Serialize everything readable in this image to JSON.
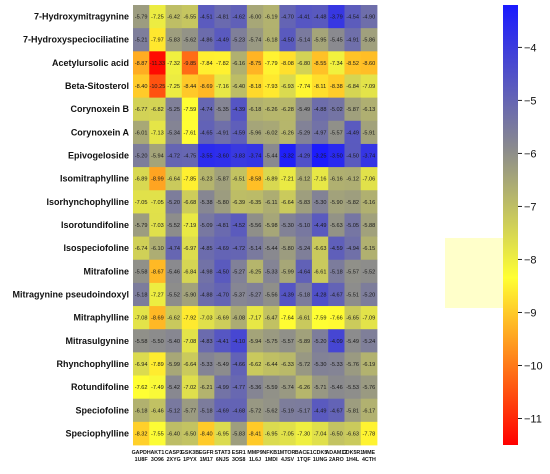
{
  "chart_data": {
    "type": "heatmap",
    "rows": [
      "7-Hydroxymitragynine",
      "7-Hydroxyspeciociliatine",
      "Acetylursolic acid",
      "Beta-Sitosterol",
      "Corynoxein B",
      "Corynoxein A",
      "Epivogeloside",
      "Isomitraphylline",
      "Isorhynchophylline",
      "Isorotundifoline",
      "Isospeciofoline",
      "Mitrafoline",
      "Mitragynine pseudoindoxyl",
      "Mitraphylline",
      "Mitrasulgynine",
      "Rhynchophylline",
      "Rotundifoline",
      "Speciofoline",
      "Speciophylline"
    ],
    "columns": [
      [
        "GAPDH",
        "1U8F"
      ],
      [
        "AKT1",
        "3O96"
      ],
      [
        "CASP3",
        "2XYG"
      ],
      [
        "GSK3B",
        "1PYX"
      ],
      [
        "EGFR",
        "1M17"
      ],
      [
        "STAT3",
        "6NJS"
      ],
      [
        "ESR1",
        "3OS8"
      ],
      [
        "MMP9",
        "1L6J"
      ],
      [
        "NFKB1",
        "1MDI"
      ],
      [
        "MTOR",
        "4JSV"
      ],
      [
        "BACE1",
        "1TQF"
      ],
      [
        "CDK5",
        "1UNG"
      ],
      [
        "ADAM17",
        "2ARO"
      ],
      [
        "CDK5R1",
        "1H4L"
      ],
      [
        "MME",
        "4CTH"
      ]
    ],
    "values": [
      [
        -5.79,
        -7.25,
        -6.42,
        -6.55,
        -4.51,
        -4.81,
        -4.62,
        -6.0,
        -6.19,
        -4.7,
        -4.41,
        -4.48,
        -3.79,
        -4.54,
        -4.9
      ],
      [
        -5.21,
        -7.97,
        -5.83,
        -5.62,
        -4.86,
        -4.49,
        -5.23,
        -5.74,
        -6.18,
        -4.5,
        -5.14,
        -5.95,
        -5.45,
        -4.91,
        -5.86
      ],
      [
        -8.87,
        -11.33,
        -7.32,
        -9.85,
        -7.84,
        -7.82,
        -6.16,
        -8.75,
        -7.79,
        -8.08,
        -6.8,
        -8.55,
        -7.34,
        -8.52,
        -8.6
      ],
      [
        -8.4,
        -10.25,
        -7.25,
        -8.44,
        -8.69,
        -7.16,
        -6.4,
        -8.18,
        -7.93,
        -6.93,
        -7.74,
        -8.11,
        -8.38,
        -6.84,
        -7.09
      ],
      [
        -6.77,
        -6.82,
        -5.25,
        -7.59,
        -4.74,
        -5.35,
        -4.39,
        -6.18,
        -6.26,
        -6.28,
        -5.49,
        -4.88,
        -5.02,
        -5.87,
        -6.13
      ],
      [
        -6.01,
        -7.13,
        -5.34,
        -7.61,
        -4.65,
        -4.91,
        -4.59,
        -5.96,
        -6.02,
        -6.26,
        -5.29,
        -4.97,
        -5.57,
        -4.49,
        -5.91
      ],
      [
        -5.2,
        -5.94,
        -4.72,
        -4.75,
        -3.55,
        -3.6,
        -3.83,
        -3.74,
        -5.44,
        -3.32,
        -4.29,
        -3.25,
        -3.5,
        -4.5,
        -3.74
      ],
      [
        -6.89,
        -8.99,
        -6.64,
        -7.85,
        -6.23,
        -5.87,
        -6.51,
        -8.58,
        -6.89,
        -7.21,
        -6.12,
        -7.16,
        -6.16,
        -6.12,
        -7.06
      ],
      [
        -7.05,
        -7.05,
        -5.2,
        -6.68,
        -5.38,
        -5.8,
        -6.39,
        -6.35,
        -6.11,
        -6.64,
        -5.83,
        -5.3,
        -5.9,
        -5.82,
        -6.16
      ],
      [
        -5.79,
        -7.03,
        -5.52,
        -7.19,
        -5.09,
        -4.81,
        -4.52,
        -5.56,
        -5.98,
        -5.3,
        -5.1,
        -4.49,
        -5.63,
        -5.05,
        -5.88
      ],
      [
        -6.74,
        -6.1,
        -4.74,
        -6.97,
        -4.85,
        -4.69,
        -4.72,
        -5.14,
        -5.44,
        -5.8,
        -5.24,
        -6.63,
        -4.59,
        -4.94,
        -6.15
      ],
      [
        -5.58,
        -8.67,
        -5.46,
        -6.84,
        -4.98,
        -4.5,
        -5.27,
        -6.25,
        -5.33,
        -5.99,
        -4.64,
        -6.61,
        -5.18,
        -5.57,
        -5.52
      ],
      [
        -5.18,
        -7.27,
        -5.52,
        -5.9,
        -4.88,
        -4.7,
        -5.37,
        -5.27,
        -5.56,
        -4.39,
        -5.18,
        -4.28,
        -4.67,
        -5.51,
        -5.2
      ],
      [
        -7.08,
        -8.69,
        -6.62,
        -7.92,
        -7.03,
        -6.69,
        -6.08,
        -7.17,
        -6.47,
        -7.64,
        -6.61,
        -7.59,
        -7.66,
        -6.65,
        -7.09
      ],
      [
        -5.58,
        -5.5,
        -5.4,
        -7.08,
        -4.83,
        -4.41,
        -4.1,
        -5.94,
        -5.75,
        -5.57,
        -5.89,
        -5.2,
        -4.09,
        -5.49,
        -5.24
      ],
      [
        -6.94,
        -7.89,
        -5.99,
        -6.64,
        -5.33,
        -5.49,
        -4.66,
        -6.62,
        -6.44,
        -6.33,
        -5.72,
        -5.3,
        -5.33,
        -5.76,
        -6.19
      ],
      [
        -7.62,
        -7.49,
        -5.42,
        -7.02,
        -6.21,
        -4.99,
        -4.77,
        -5.36,
        -5.59,
        -5.74,
        -6.26,
        -5.71,
        -5.46,
        -5.53,
        -5.76
      ],
      [
        -6.18,
        -6.46,
        -5.12,
        -5.77,
        -5.18,
        -4.69,
        -4.68,
        -5.72,
        -5.62,
        -5.19,
        -5.17,
        -4.49,
        -4.67,
        -5.81,
        -6.17
      ],
      [
        -8.32,
        -7.55,
        -6.4,
        -6.5,
        -8.4,
        -6.95,
        -5.83,
        -8.41,
        -6.95,
        -7.05,
        -7.3,
        -7.04,
        -6.5,
        -6.63,
        -7.78
      ]
    ],
    "colorbar": {
      "min": -11.5,
      "max": -3.2,
      "ticks": [
        -4,
        -5,
        -6,
        -7,
        -8,
        -9,
        -10,
        -11
      ],
      "colors": {
        "high": "#1a1aff",
        "mid_upper": "#8c8c8c",
        "mid": "#ffff33",
        "low": "#ff0000"
      }
    },
    "title": "",
    "xlabel": "",
    "ylabel": ""
  }
}
